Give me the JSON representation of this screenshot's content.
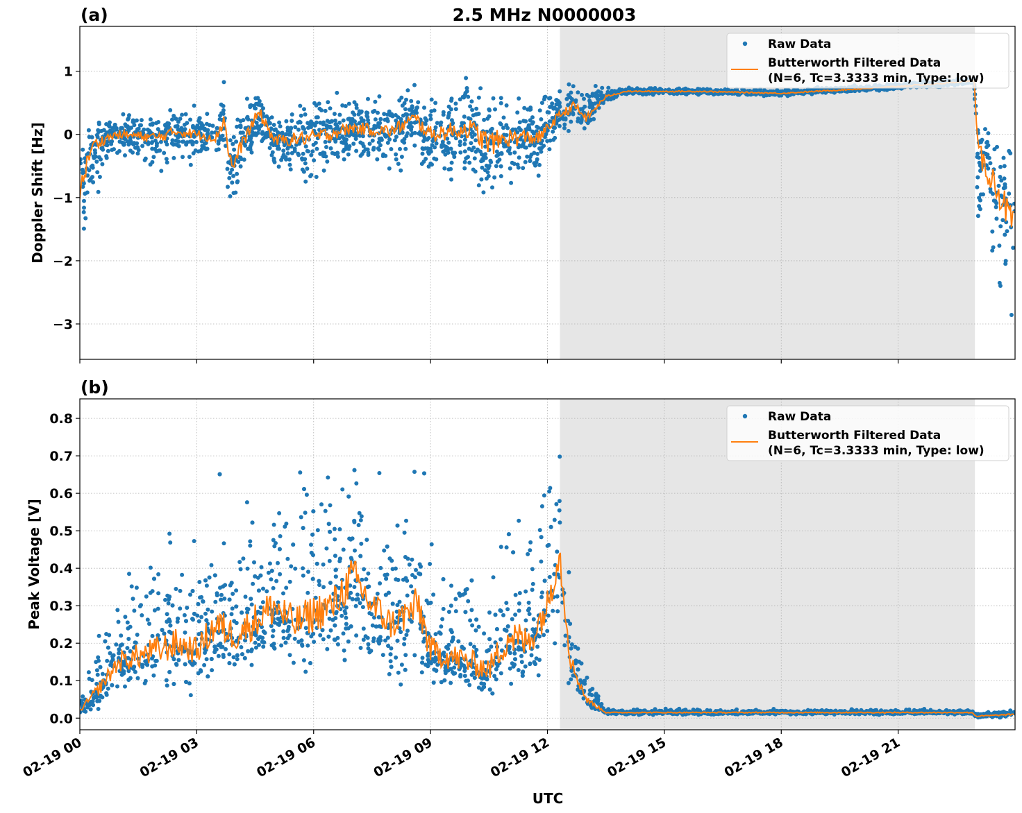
{
  "figure": {
    "title": "2.5 MHz N0000003",
    "xlabel": "UTC",
    "colors": {
      "raw": "#1f77b4",
      "filtered": "#ff7f0e",
      "shade": "#e6e6e6",
      "grid": "#b0b0b0"
    }
  },
  "chart_data": [
    {
      "type": "scatter",
      "panel_label": "(a)",
      "ylabel": "Doppler Shift [Hz]",
      "xlim_hours": [
        0,
        24
      ],
      "ylim": [
        -3.56,
        1.71
      ],
      "yticks": [
        1,
        0,
        -1,
        -2,
        -3
      ],
      "ytick_labels": [
        "1",
        "0",
        "−1",
        "−2",
        "−3"
      ],
      "xticks_hours": [
        0,
        3,
        6,
        9,
        12,
        15,
        18,
        21
      ],
      "grid": true,
      "legend_position": "top-right",
      "legend": [
        "Raw Data",
        "Butterworth Filtered Data",
        "(N=6, Tc=3.3333 min, Type: low)"
      ],
      "shaded_interval": [
        "02-19 12:19",
        "02-19 22:58"
      ],
      "shaded_interval_hours": [
        12.32,
        22.97
      ],
      "filtered": {
        "x_hours": [
          0,
          0.3,
          0.7,
          1,
          2,
          2.5,
          3,
          3.5,
          3.7,
          3.9,
          4.2,
          4.6,
          5,
          6,
          7,
          8,
          8.6,
          9,
          10,
          10.5,
          11,
          11.8,
          12.3,
          12.7,
          13,
          13.5,
          14,
          16,
          18,
          20,
          22,
          22.95,
          23.05,
          23.5,
          24
        ],
        "y": [
          -0.9,
          -0.2,
          -0.05,
          0,
          -0.05,
          0.05,
          0,
          -0.05,
          0.25,
          -0.55,
          -0.1,
          0.35,
          -0.1,
          -0.05,
          0.1,
          0.05,
          0.25,
          0,
          0.1,
          -0.15,
          -0.05,
          -0.05,
          0.3,
          0.45,
          0.25,
          0.6,
          0.68,
          0.68,
          0.65,
          0.72,
          0.8,
          0.85,
          -0.3,
          -0.8,
          -1.5
        ]
      },
      "raw_envelope": {
        "low": [
          -2.2,
          -1.3,
          -0.6,
          -0.5,
          -0.7,
          -0.5,
          -0.5,
          -0.6,
          -0.5,
          -1.7,
          -0.7,
          -0.3,
          -0.7,
          -0.9,
          -0.5,
          -0.7,
          -0.5,
          -0.9,
          -0.7,
          -1.5,
          -0.9,
          -0.7,
          0,
          0,
          -0.05,
          0.5,
          0.62,
          0.62,
          0.6,
          0.67,
          0.74,
          0.78,
          -1.9,
          -2.7,
          -3.3
        ],
        "high": [
          0.1,
          0.2,
          0.3,
          0.35,
          0.4,
          0.55,
          0.5,
          0.5,
          1.3,
          0.4,
          0.6,
          1.0,
          0.4,
          0.6,
          0.7,
          0.6,
          0.9,
          0.7,
          1.2,
          1.0,
          1.0,
          0.7,
          0.8,
          1.05,
          0.8,
          0.75,
          0.74,
          0.74,
          0.72,
          0.8,
          0.86,
          0.9,
          0.5,
          0.3,
          0.0
        ]
      }
    },
    {
      "type": "scatter",
      "panel_label": "(b)",
      "ylabel": "Peak Voltage [V]",
      "xlim_hours": [
        0,
        24
      ],
      "ylim": [
        -0.031,
        0.852
      ],
      "yticks": [
        0.8,
        0.7,
        0.6,
        0.5,
        0.4,
        0.3,
        0.2,
        0.1,
        0.0
      ],
      "ytick_labels": [
        "0.8",
        "0.7",
        "0.6",
        "0.5",
        "0.4",
        "0.3",
        "0.2",
        "0.1",
        "0.0"
      ],
      "xticks_hours": [
        0,
        3,
        6,
        9,
        12,
        15,
        18,
        21
      ],
      "xtick_labels": [
        "02-19 00",
        "02-19 03",
        "02-19 06",
        "02-19 09",
        "02-19 12",
        "02-19 15",
        "02-19 18",
        "02-19 21"
      ],
      "grid": true,
      "legend_position": "top-right",
      "legend": [
        "Raw Data",
        "Butterworth Filtered Data",
        "(N=6, Tc=3.3333 min, Type: low)"
      ],
      "shaded_interval": [
        "02-19 12:19",
        "02-19 22:58"
      ],
      "shaded_interval_hours": [
        12.32,
        22.97
      ],
      "filtered": {
        "x_hours": [
          0,
          0.5,
          1,
          2,
          2.5,
          3,
          3.5,
          4,
          5,
          5.5,
          6,
          6.5,
          7,
          7.5,
          8,
          8.7,
          9,
          10,
          10.5,
          11,
          11.5,
          12,
          12.3,
          12.6,
          13,
          13.5,
          22.9,
          23,
          24
        ],
        "y": [
          0.02,
          0.08,
          0.15,
          0.18,
          0.2,
          0.18,
          0.25,
          0.22,
          0.3,
          0.25,
          0.28,
          0.3,
          0.38,
          0.3,
          0.25,
          0.3,
          0.18,
          0.15,
          0.13,
          0.22,
          0.2,
          0.3,
          0.45,
          0.15,
          0.05,
          0.015,
          0.015,
          0.005,
          0.01
        ]
      },
      "raw_envelope": {
        "low": [
          0.0,
          0.02,
          0.04,
          0.05,
          0.05,
          0.06,
          0.07,
          0.08,
          0.1,
          0.1,
          0.1,
          0.1,
          0.12,
          0.1,
          0.08,
          0.07,
          0.07,
          0.06,
          0.06,
          0.07,
          0.08,
          0.12,
          0.14,
          0.06,
          0.02,
          0.008,
          0.008,
          0.0,
          0.0
        ],
        "high": [
          0.05,
          0.25,
          0.38,
          0.56,
          0.55,
          0.5,
          0.68,
          0.6,
          0.78,
          0.7,
          0.75,
          0.72,
          0.8,
          0.72,
          0.6,
          0.76,
          0.55,
          0.5,
          0.45,
          0.74,
          0.66,
          0.7,
          0.81,
          0.4,
          0.14,
          0.025,
          0.025,
          0.02,
          0.025
        ]
      }
    }
  ]
}
